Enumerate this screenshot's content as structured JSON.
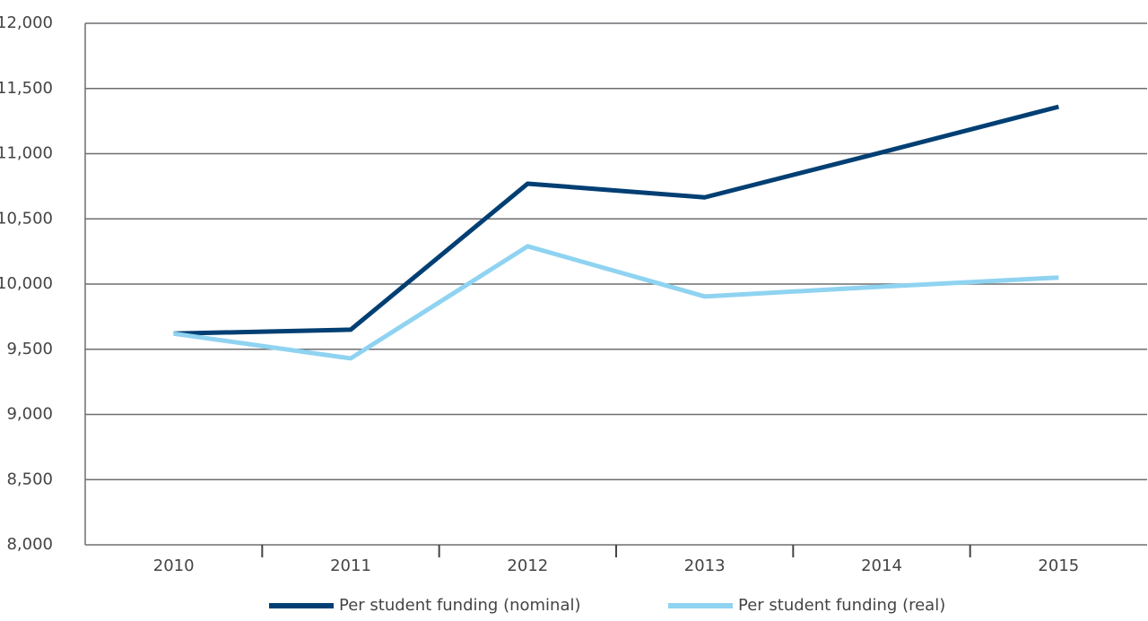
{
  "chart_data": {
    "type": "line",
    "categories": [
      "2010",
      "2011",
      "2012",
      "2013",
      "2014",
      "2015"
    ],
    "series": [
      {
        "name": "Per student funding (nominal)",
        "color": "#003f73",
        "values": [
          9620,
          9650,
          10770,
          10665,
          11010,
          11360
        ]
      },
      {
        "name": "Per student funding (real)",
        "color": "#8fd3f1",
        "values": [
          9620,
          9430,
          10290,
          9905,
          9980,
          10050
        ]
      }
    ],
    "ylim": [
      8000,
      12000
    ],
    "yticks": [
      {
        "value": 8000,
        "label": "8,000"
      },
      {
        "value": 8500,
        "label": "8,500"
      },
      {
        "value": 9000,
        "label": "9,000"
      },
      {
        "value": 9500,
        "label": "9,500"
      },
      {
        "value": 10000,
        "label": "10,000"
      },
      {
        "value": 10500,
        "label": "10,500"
      },
      {
        "value": 11000,
        "label": "11,000"
      },
      {
        "value": 11500,
        "label": "11,500"
      },
      {
        "value": 12000,
        "label": "12,000"
      }
    ],
    "grid": true,
    "legend": "bottom"
  }
}
